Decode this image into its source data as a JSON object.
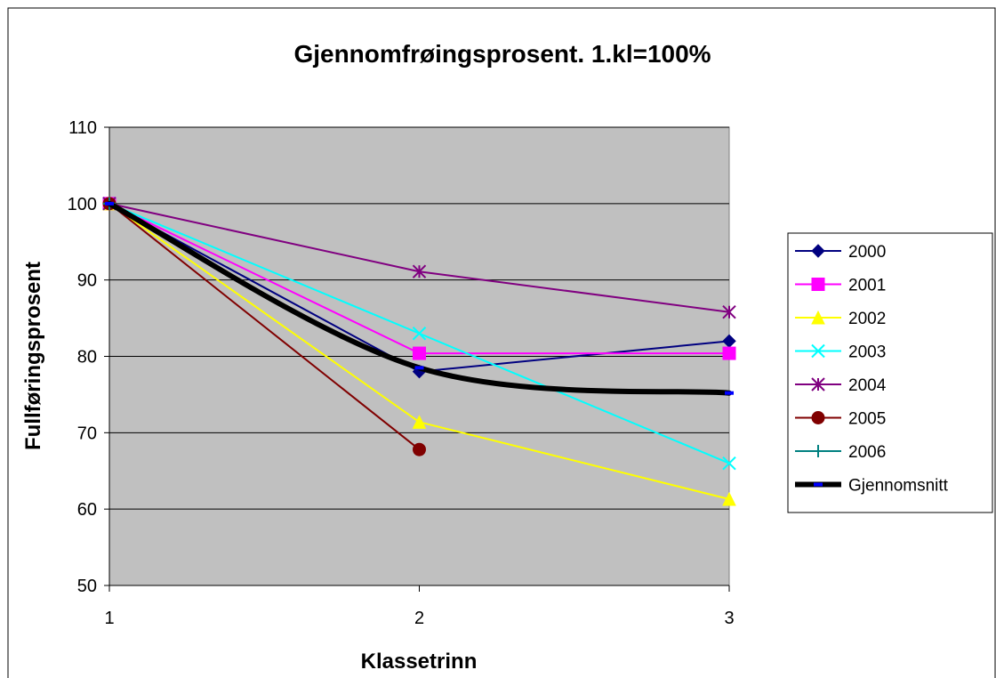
{
  "chart_data": {
    "type": "line",
    "title": "Gjennomfrøingsprosent. 1.kl=100%",
    "xlabel": "Klassetrinn",
    "ylabel": "Fullføringsprosent",
    "x": [
      1,
      2,
      3
    ],
    "xlim": [
      1,
      3
    ],
    "ylim": [
      50,
      110
    ],
    "yticks": [
      50,
      60,
      70,
      80,
      90,
      100,
      110
    ],
    "grid": true,
    "legend": "right",
    "plot_background": "#c0c0c0",
    "series": [
      {
        "name": "2000",
        "values": [
          100,
          78,
          82
        ],
        "color": "#000080",
        "marker": "diamond",
        "smooth": false
      },
      {
        "name": "2001",
        "values": [
          100,
          80.4,
          80.4
        ],
        "color": "#ff00ff",
        "marker": "square",
        "smooth": false
      },
      {
        "name": "2002",
        "values": [
          100,
          71.4,
          61.3
        ],
        "color": "#ffff00",
        "marker": "triangle",
        "smooth": false
      },
      {
        "name": "2003",
        "values": [
          100,
          83,
          66
        ],
        "color": "#00ffff",
        "marker": "x",
        "smooth": false
      },
      {
        "name": "2004",
        "values": [
          100,
          91.1,
          85.8
        ],
        "color": "#800080",
        "marker": "star",
        "smooth": false
      },
      {
        "name": "2005",
        "values": [
          100,
          67.8,
          null
        ],
        "color": "#800000",
        "marker": "circle",
        "smooth": false
      },
      {
        "name": "2006",
        "values": [
          100,
          null,
          null
        ],
        "color": "#008080",
        "marker": "plus",
        "smooth": false
      },
      {
        "name": "Gjennomsnitt",
        "values": [
          100,
          78.5,
          75.2
        ],
        "color": "#000000",
        "marker": "dash",
        "marker_color": "#0000ff",
        "smooth": true,
        "thick": true
      }
    ]
  }
}
